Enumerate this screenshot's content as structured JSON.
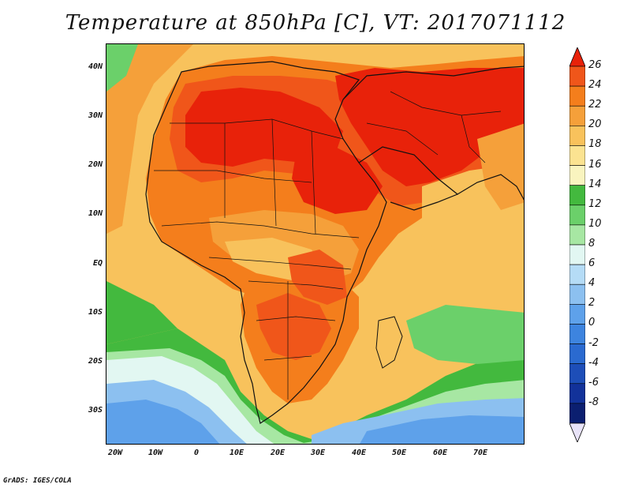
{
  "title": "Temperature at 850hPa [C], VT: 2017071112",
  "credit": "GrADS: IGES/COLA",
  "map": {
    "region": "Africa and Middle East",
    "lon_range": [
      -23,
      80
    ],
    "lat_range": [
      -37,
      45
    ],
    "y_labels": [
      "40N",
      "30N",
      "20N",
      "10N",
      "EQ",
      "10S",
      "20S",
      "30S"
    ],
    "x_labels": [
      "20W",
      "10W",
      "0",
      "10E",
      "20E",
      "30E",
      "40E",
      "50E",
      "60E",
      "70E"
    ]
  },
  "colorbar": {
    "labels": [
      "26",
      "24",
      "22",
      "20",
      "18",
      "16",
      "14",
      "12",
      "10",
      "8",
      "6",
      "4",
      "2",
      "0",
      "-2",
      "-4",
      "-6",
      "-8"
    ],
    "colors": [
      "#e8220a",
      "#f0561a",
      "#f47e1c",
      "#f5a03a",
      "#f8c25c",
      "#fbe391",
      "#f9f4bf",
      "#43b93e",
      "#6bd06a",
      "#a7e7a3",
      "#e2f7f2",
      "#b5dcf6",
      "#8cc0f0",
      "#5ea1ea",
      "#3d84df",
      "#2a6ad0",
      "#1d4eb8",
      "#12329a",
      "#0b1f70",
      "#e8e3f8"
    ]
  }
}
